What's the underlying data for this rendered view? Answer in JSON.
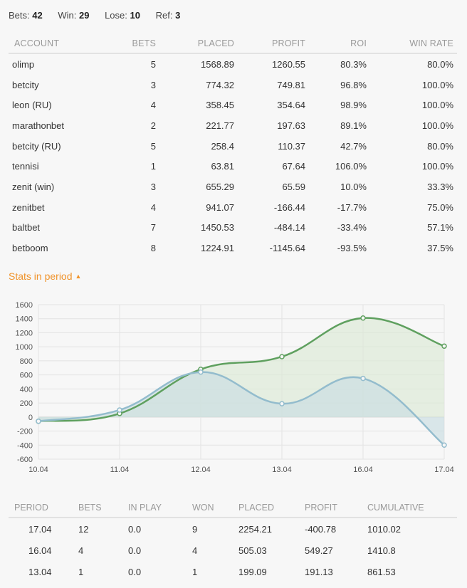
{
  "summary": {
    "bets_label": "Bets:",
    "bets": "42",
    "win_label": "Win:",
    "win": "29",
    "lose_label": "Lose:",
    "lose": "10",
    "ref_label": "Ref:",
    "ref": "3"
  },
  "accounts": {
    "headers": [
      "ACCOUNT",
      "BETS",
      "PLACED",
      "PROFIT",
      "ROI",
      "WIN RATE"
    ],
    "rows": [
      [
        "olimp",
        "5",
        "1568.89",
        "1260.55",
        "80.3%",
        "80.0%"
      ],
      [
        "betcity",
        "3",
        "774.32",
        "749.81",
        "96.8%",
        "100.0%"
      ],
      [
        "leon (RU)",
        "4",
        "358.45",
        "354.64",
        "98.9%",
        "100.0%"
      ],
      [
        "marathonbet",
        "2",
        "221.77",
        "197.63",
        "89.1%",
        "100.0%"
      ],
      [
        "betcity (RU)",
        "5",
        "258.4",
        "110.37",
        "42.7%",
        "80.0%"
      ],
      [
        "tennisi",
        "1",
        "63.81",
        "67.64",
        "106.0%",
        "100.0%"
      ],
      [
        "zenit (win)",
        "3",
        "655.29",
        "65.59",
        "10.0%",
        "33.3%"
      ],
      [
        "zenitbet",
        "4",
        "941.07",
        "-166.44",
        "-17.7%",
        "75.0%"
      ],
      [
        "baltbet",
        "7",
        "1450.53",
        "-484.14",
        "-33.4%",
        "57.1%"
      ],
      [
        "betboom",
        "8",
        "1224.91",
        "-1145.64",
        "-93.5%",
        "37.5%"
      ]
    ]
  },
  "period_toggle": {
    "label": "Stats in period",
    "icon": "chevron-up-icon"
  },
  "chart_data": {
    "type": "area",
    "categories": [
      "10.04",
      "11.04",
      "12.04",
      "13.04",
      "16.04",
      "17.04"
    ],
    "series": [
      {
        "color": "#5fa05f",
        "fill": "#dbe9d6",
        "values": [
          -60,
          50,
          680,
          860,
          1410,
          1010
        ]
      },
      {
        "color": "#93bccd",
        "fill": "#c9dde2",
        "values": [
          -60,
          100,
          640,
          190,
          550,
          -400
        ]
      }
    ],
    "ylim": [
      -600,
      1600
    ],
    "yticks": [
      1600,
      1400,
      1200,
      1000,
      800,
      600,
      400,
      200,
      0,
      -200,
      -400,
      -600
    ],
    "grid": true
  },
  "periods": {
    "headers": [
      "PERIOD",
      "BETS",
      "IN PLAY",
      "WON",
      "PLACED",
      "PROFIT",
      "CUMULATIVE"
    ],
    "rows": [
      [
        "17.04",
        "12",
        "0.0",
        "9",
        "2254.21",
        "-400.78",
        "1010.02"
      ],
      [
        "16.04",
        "4",
        "0.0",
        "4",
        "505.03",
        "549.27",
        "1410.8"
      ],
      [
        "13.04",
        "1",
        "0.0",
        "1",
        "199.09",
        "191.13",
        "861.53"
      ]
    ]
  }
}
